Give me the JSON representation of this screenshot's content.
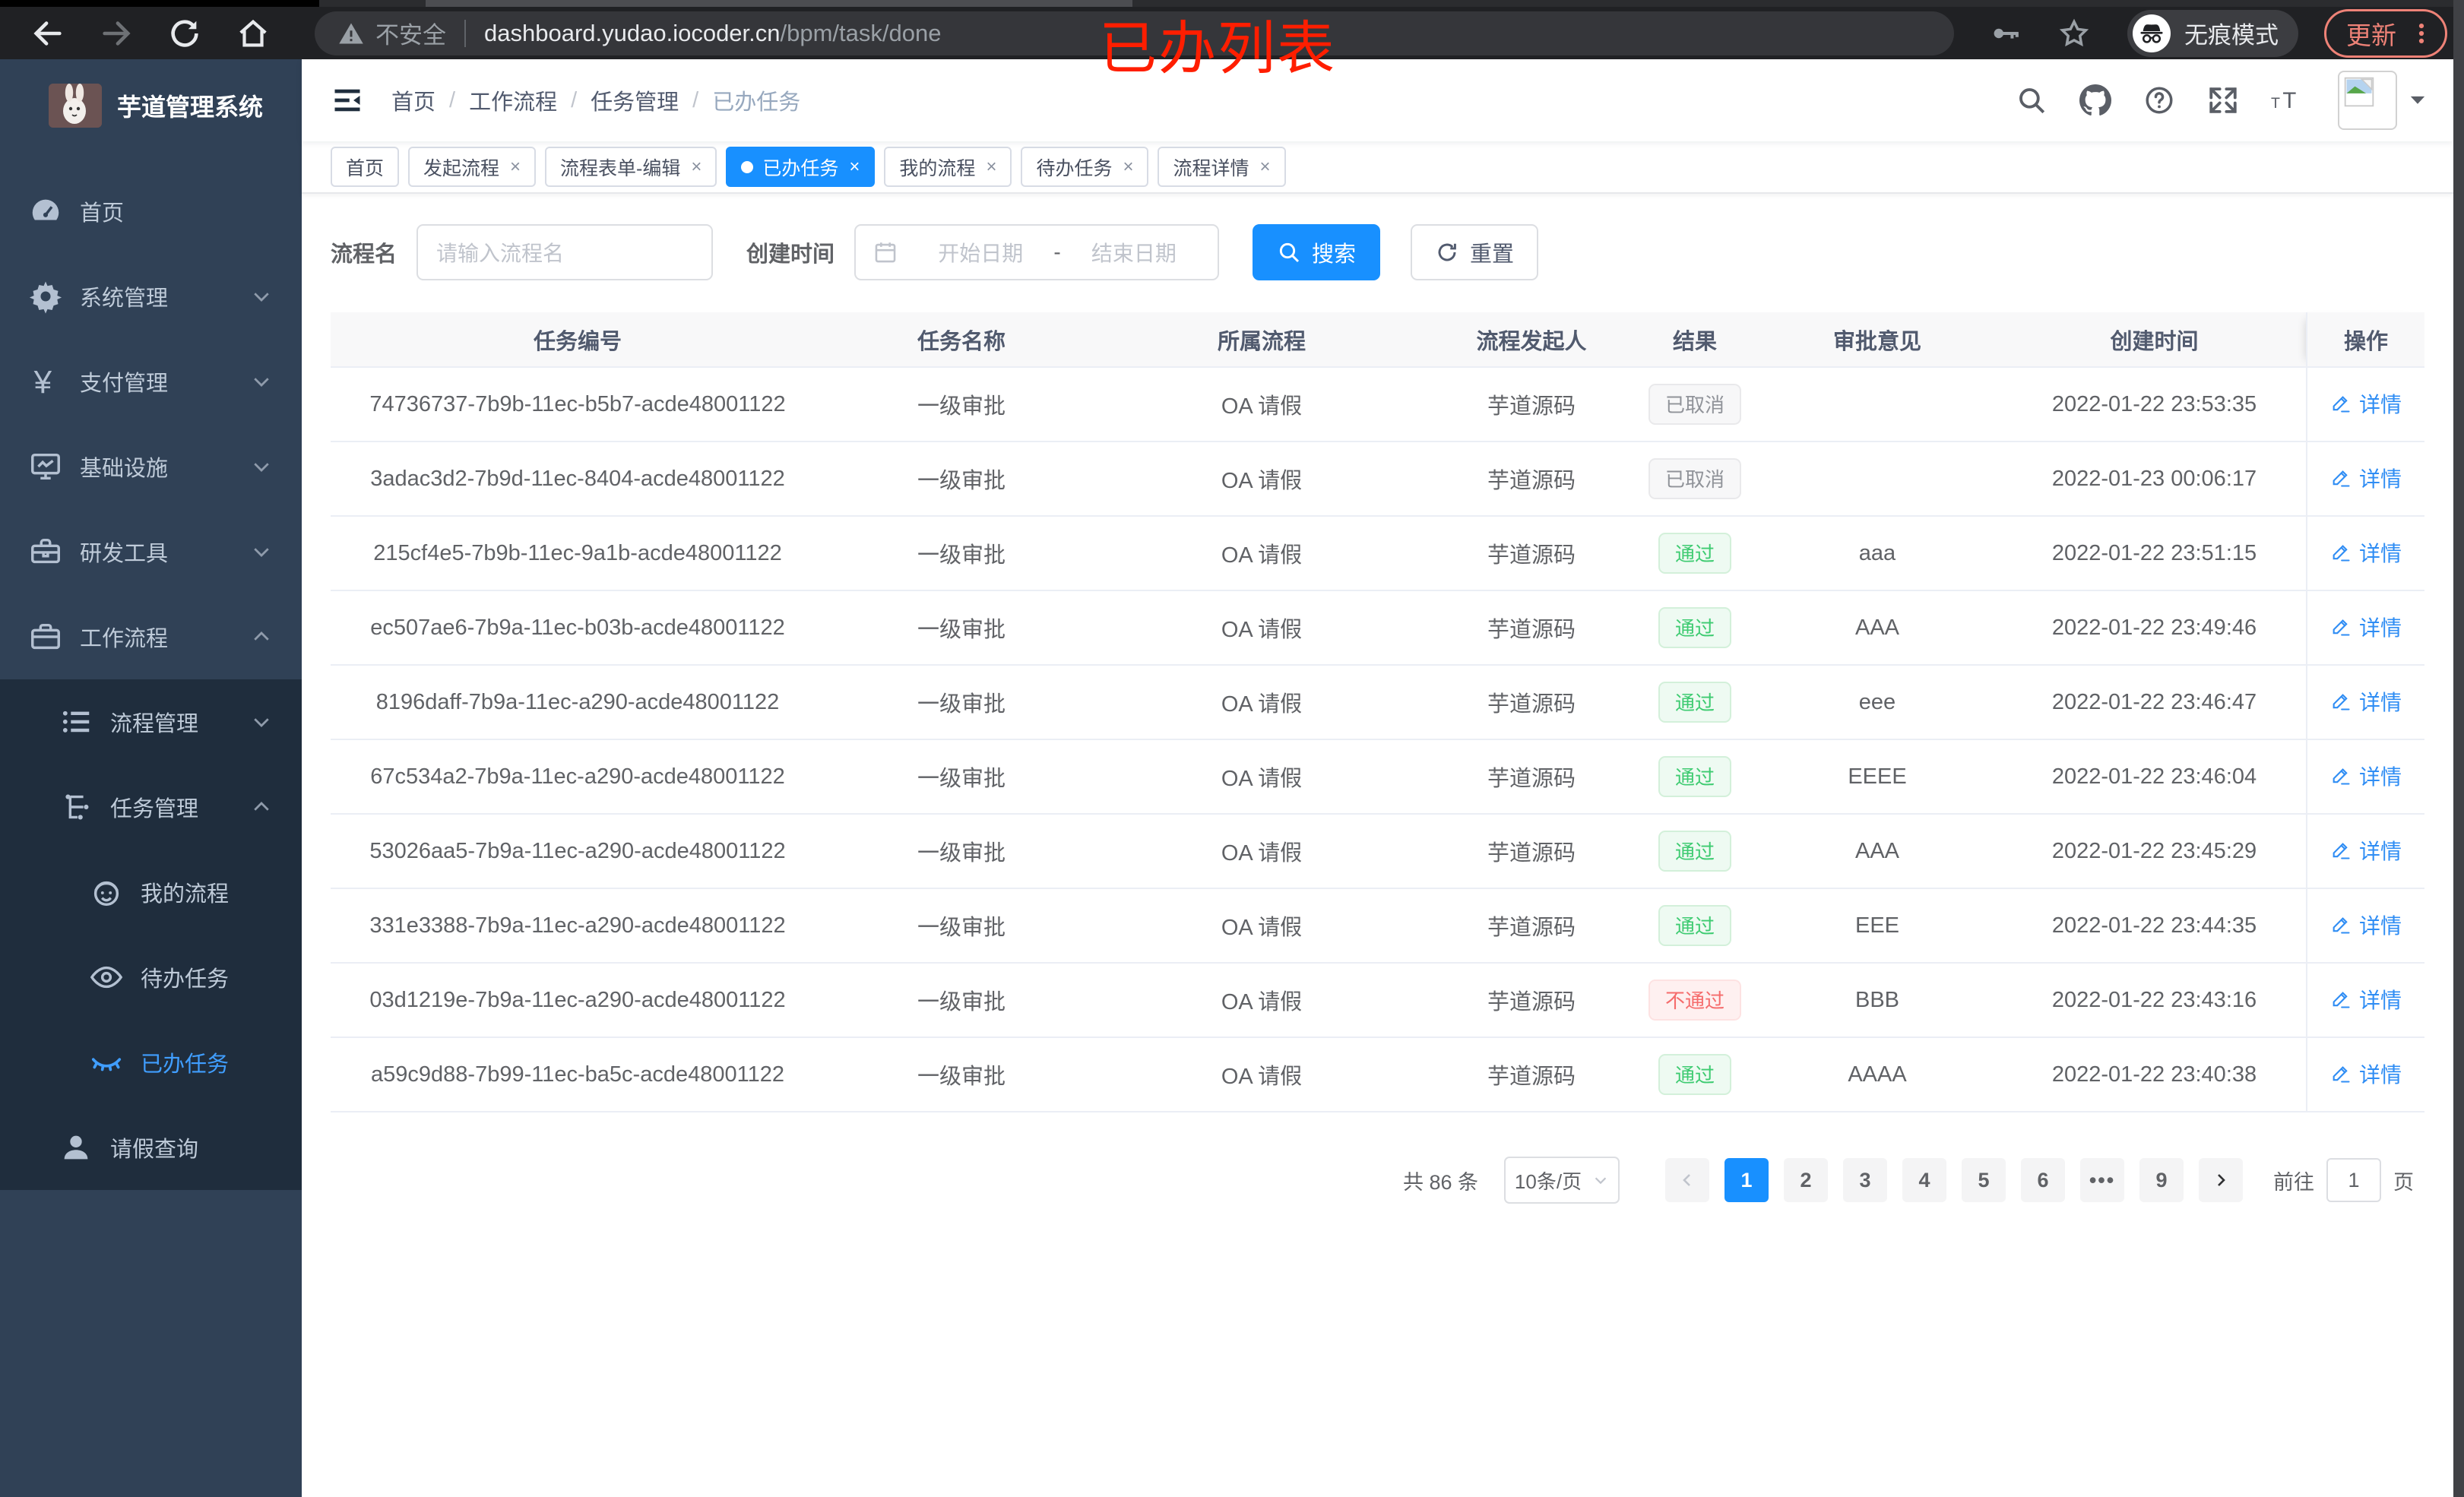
{
  "browser": {
    "secure_label": "不安全",
    "url_host": "dashboard.yudao.iocoder.cn",
    "url_path": "/bpm/task/done",
    "incognito_label": "无痕模式",
    "update_label": "更新"
  },
  "annotation": {
    "text": "已办列表",
    "color": "#ff1e00"
  },
  "sidebar": {
    "title": "芋道管理系统",
    "menu": [
      {
        "icon": "dashboard",
        "label": "首页",
        "level": 1,
        "sub": false,
        "chevron": "",
        "active": false
      },
      {
        "icon": "gear",
        "label": "系统管理",
        "level": 1,
        "sub": false,
        "chevron": "down",
        "active": false
      },
      {
        "icon": "yen",
        "label": "支付管理",
        "level": 1,
        "sub": false,
        "chevron": "down",
        "active": false
      },
      {
        "icon": "monitor",
        "label": "基础设施",
        "level": 1,
        "sub": false,
        "chevron": "down",
        "active": false
      },
      {
        "icon": "toolbox",
        "label": "研发工具",
        "level": 1,
        "sub": false,
        "chevron": "down",
        "active": false
      },
      {
        "icon": "briefcase",
        "label": "工作流程",
        "level": 1,
        "sub": false,
        "chevron": "up",
        "active": false
      },
      {
        "icon": "list",
        "label": "流程管理",
        "level": 2,
        "sub": true,
        "chevron": "down",
        "active": false
      },
      {
        "icon": "flow",
        "label": "任务管理",
        "level": 2,
        "sub": true,
        "chevron": "up",
        "active": false
      },
      {
        "icon": "face",
        "label": "我的流程",
        "level": 3,
        "sub": true,
        "chevron": "",
        "active": false
      },
      {
        "icon": "eye",
        "label": "待办任务",
        "level": 3,
        "sub": true,
        "chevron": "",
        "active": false
      },
      {
        "icon": "eye-closed",
        "label": "已办任务",
        "level": 3,
        "sub": true,
        "chevron": "",
        "active": true
      },
      {
        "icon": "person",
        "label": "请假查询",
        "level": 2,
        "sub": true,
        "chevron": "",
        "active": false
      }
    ]
  },
  "header": {
    "breadcrumb": [
      "首页",
      "工作流程",
      "任务管理",
      "已办任务"
    ]
  },
  "tabs": [
    {
      "label": "首页",
      "closable": false,
      "active": false
    },
    {
      "label": "发起流程",
      "closable": true,
      "active": false
    },
    {
      "label": "流程表单-编辑",
      "closable": true,
      "active": false
    },
    {
      "label": "已办任务",
      "closable": true,
      "active": true
    },
    {
      "label": "我的流程",
      "closable": true,
      "active": false
    },
    {
      "label": "待办任务",
      "closable": true,
      "active": false
    },
    {
      "label": "流程详情",
      "closable": true,
      "active": false
    }
  ],
  "filters": {
    "name_label": "流程名",
    "name_placeholder": "请输入流程名",
    "time_label": "创建时间",
    "start_placeholder": "开始日期",
    "range_separator": "-",
    "end_placeholder": "结束日期",
    "search_label": "搜索",
    "reset_label": "重置"
  },
  "table": {
    "columns": [
      "任务编号",
      "任务名称",
      "所属流程",
      "流程发起人",
      "结果",
      "审批意见",
      "创建时间",
      "操作"
    ],
    "detail_label": "详情",
    "rows": [
      {
        "id": "74736737-7b9b-11ec-b5b7-acde48001122",
        "name": "一级审批",
        "process": "OA 请假",
        "starter": "芋道源码",
        "result": {
          "label": "已取消",
          "type": "info"
        },
        "comment": "",
        "time": "2022-01-22 23:53:35"
      },
      {
        "id": "3adac3d2-7b9d-11ec-8404-acde48001122",
        "name": "一级审批",
        "process": "OA 请假",
        "starter": "芋道源码",
        "result": {
          "label": "已取消",
          "type": "info"
        },
        "comment": "",
        "time": "2022-01-23 00:06:17"
      },
      {
        "id": "215cf4e5-7b9b-11ec-9a1b-acde48001122",
        "name": "一级审批",
        "process": "OA 请假",
        "starter": "芋道源码",
        "result": {
          "label": "通过",
          "type": "success"
        },
        "comment": "aaa",
        "time": "2022-01-22 23:51:15"
      },
      {
        "id": "ec507ae6-7b9a-11ec-b03b-acde48001122",
        "name": "一级审批",
        "process": "OA 请假",
        "starter": "芋道源码",
        "result": {
          "label": "通过",
          "type": "success"
        },
        "comment": "AAA",
        "time": "2022-01-22 23:49:46"
      },
      {
        "id": "8196daff-7b9a-11ec-a290-acde48001122",
        "name": "一级审批",
        "process": "OA 请假",
        "starter": "芋道源码",
        "result": {
          "label": "通过",
          "type": "success"
        },
        "comment": "eee",
        "time": "2022-01-22 23:46:47"
      },
      {
        "id": "67c534a2-7b9a-11ec-a290-acde48001122",
        "name": "一级审批",
        "process": "OA 请假",
        "starter": "芋道源码",
        "result": {
          "label": "通过",
          "type": "success"
        },
        "comment": "EEEE",
        "time": "2022-01-22 23:46:04"
      },
      {
        "id": "53026aa5-7b9a-11ec-a290-acde48001122",
        "name": "一级审批",
        "process": "OA 请假",
        "starter": "芋道源码",
        "result": {
          "label": "通过",
          "type": "success"
        },
        "comment": "AAA",
        "time": "2022-01-22 23:45:29"
      },
      {
        "id": "331e3388-7b9a-11ec-a290-acde48001122",
        "name": "一级审批",
        "process": "OA 请假",
        "starter": "芋道源码",
        "result": {
          "label": "通过",
          "type": "success"
        },
        "comment": "EEE",
        "time": "2022-01-22 23:44:35"
      },
      {
        "id": "03d1219e-7b9a-11ec-a290-acde48001122",
        "name": "一级审批",
        "process": "OA 请假",
        "starter": "芋道源码",
        "result": {
          "label": "不通过",
          "type": "danger"
        },
        "comment": "BBB",
        "time": "2022-01-22 23:43:16"
      },
      {
        "id": "a59c9d88-7b99-11ec-ba5c-acde48001122",
        "name": "一级审批",
        "process": "OA 请假",
        "starter": "芋道源码",
        "result": {
          "label": "通过",
          "type": "success"
        },
        "comment": "AAAA",
        "time": "2022-01-22 23:40:38"
      }
    ]
  },
  "pagination": {
    "total_label": "共 86 条",
    "page_size": "10条/页",
    "pages": [
      "1",
      "2",
      "3",
      "4",
      "5",
      "6",
      "•••",
      "9"
    ],
    "active_page": "1",
    "goto_label": "前往",
    "goto_value": "1",
    "page_unit": "页"
  },
  "colors": {
    "accent_blue": "#1890ff",
    "sidebar_bg": "#304156",
    "sidebar_sub_bg": "#1f2d3d",
    "success_text": "#3ecb71",
    "danger_text": "#f56c6c",
    "info_text": "#909399",
    "annotation_red": "#ff1e00"
  }
}
